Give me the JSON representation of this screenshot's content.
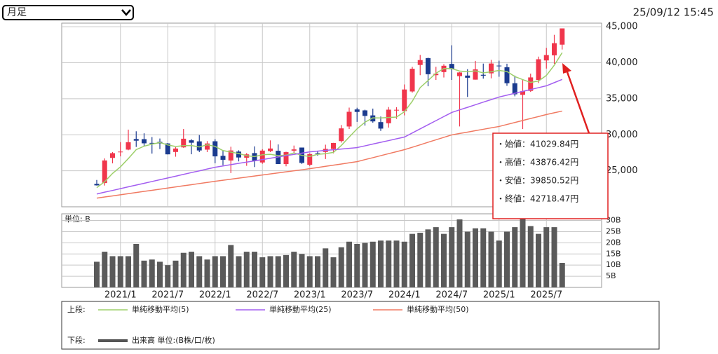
{
  "controls": {
    "period_select": "月足",
    "timestamp": "25/09/12 15:45"
  },
  "chart_data": [
    {
      "type": "candlestick",
      "categories": [
        null,
        null,
        null,
        "2021/1",
        null,
        null,
        null,
        null,
        null,
        "2021/7",
        null,
        null,
        null,
        null,
        null,
        "2022/1",
        null,
        null,
        null,
        null,
        null,
        "2022/7",
        null,
        null,
        null,
        null,
        null,
        "2023/1",
        null,
        null,
        null,
        null,
        null,
        "2023/7",
        null,
        null,
        null,
        null,
        null,
        "2024/1",
        null,
        null,
        null,
        null,
        null,
        "2024/7",
        null,
        null,
        null,
        null,
        null,
        "2025/1",
        null,
        null,
        null,
        null,
        null,
        "2025/7",
        null,
        null
      ],
      "open": [
        23185,
        23295,
        26787,
        27575,
        27940,
        29409,
        29394,
        28872,
        29019,
        28795,
        27611,
        28252,
        29235,
        29085,
        27935,
        29098,
        27078,
        26427,
        27665,
        26818,
        27457,
        26154,
        27743,
        27778,
        25938,
        27795,
        28226,
        25834,
        27451,
        27608,
        28033,
        29123,
        31148,
        33517,
        33386,
        32690,
        31759,
        31601,
        33444,
        33288,
        36011,
        39690,
        40646,
        38273,
        38702,
        39839,
        38140,
        38221,
        37652,
        38328,
        38531,
        39605,
        39369,
        37154,
        35548,
        36091,
        37616,
        40320,
        41029.84,
        42511
      ],
      "high": [
        23725,
        26716,
        27602,
        28979,
        30714,
        30485,
        30208,
        29685,
        29480,
        28852,
        28279,
        30795,
        29388,
        29960,
        29121,
        29388,
        27822,
        28338,
        27850,
        27458,
        28389,
        27993,
        29222,
        28659,
        27652,
        28502,
        28226,
        27433,
        27697,
        28623,
        28879,
        31352,
        33772,
        33753,
        33488,
        33634,
        32533,
        33853,
        33824,
        36984,
        39426,
        41087,
        40697,
        39437,
        39801,
        42426,
        38703,
        39100,
        40257,
        39884,
        40398,
        40288,
        39866,
        38220,
        37645,
        38494,
        40852,
        42065,
        43876.42,
        44768
      ],
      "low": [
        22948,
        22948,
        26030,
        27002,
        27850,
        28308,
        28419,
        27385,
        28009,
        27272,
        26954,
        28188,
        27293,
        27587,
        27594,
        26044,
        25775,
        24681,
        26304,
        25688,
        25520,
        25971,
        27595,
        25937,
        25621,
        27472,
        25953,
        25661,
        27106,
        26632,
        27427,
        28914,
        30796,
        31791,
        31275,
        31674,
        30538,
        30998,
        32205,
        32693,
        35854,
        38271,
        36733,
        37617,
        37950,
        37611,
        31156,
        35247,
        37652,
        37794,
        37835,
        38055,
        36793,
        35336,
        30792,
        35948,
        37184,
        39192,
        39850.52,
        41835
      ],
      "close": [
        22977,
        26434,
        27444,
        27663,
        28966,
        29179,
        28813,
        28860,
        28791,
        27283,
        28089,
        29452,
        28892,
        27821,
        28791,
        27001,
        26526,
        27821,
        26847,
        27279,
        26393,
        27801,
        28091,
        25937,
        27587,
        27968,
        26094,
        27327,
        27446,
        28041,
        28856,
        30887,
        33189,
        33172,
        32619,
        31857,
        30858,
        33486,
        33464,
        36286,
        39166,
        40369,
        38405,
        38487,
        39583,
        39101,
        38647,
        37919,
        39081,
        38208,
        39894,
        39572,
        37156,
        35617,
        36045,
        37965,
        40487,
        41069,
        42718.47,
        44768
      ],
      "up_color": "#f0364c",
      "down_color": "#1b3b8f",
      "series": [
        {
          "name": "単純移動平均(5)",
          "color": "#9dcf6a",
          "values": [
            22660,
            23489,
            24636,
            25541,
            26697,
            27937,
            28413,
            28696,
            28922,
            28585,
            28367,
            28495,
            28501,
            28307,
            28609,
            28391,
            27806,
            27592,
            27397,
            27095,
            26973,
            27228,
            27282,
            27100,
            27162,
            27477,
            27135,
            26983,
            27284,
            27375,
            27553,
            28511,
            29684,
            30829,
            31745,
            32345,
            32339,
            32398,
            32457,
            33190,
            34652,
            36554,
            37538,
            38543,
            39202,
            39189,
            38845,
            38747,
            38866,
            38591,
            38750,
            38935,
            38782,
            38089,
            37657,
            37271,
            37454,
            38237,
            39657,
            41401
          ]
        },
        {
          "name": "単純移動平均(25)",
          "color": "#a35ef0",
          "values": [
            21780,
            22030,
            22270,
            22520,
            22770,
            23020,
            23260,
            23510,
            23760,
            24000,
            24250,
            24500,
            24750,
            24990,
            25240,
            25490,
            25670,
            25850,
            26030,
            26200,
            26380,
            26560,
            26740,
            26920,
            27100,
            27270,
            27450,
            27630,
            27730,
            27830,
            27920,
            28020,
            28120,
            28220,
            28460,
            28710,
            28950,
            29190,
            29440,
            29680,
            30250,
            30820,
            31390,
            31960,
            32530,
            33100,
            33460,
            33810,
            34170,
            34530,
            34880,
            35240,
            35500,
            35760,
            36020,
            36280,
            36540,
            36800,
            37240,
            37680
          ]
        },
        {
          "name": "単純移動平均(50)",
          "color": "#f07a62",
          "values": [
            21200,
            21360,
            21510,
            21670,
            21820,
            21980,
            22140,
            22290,
            22450,
            22600,
            22760,
            22920,
            23070,
            23230,
            23380,
            23540,
            23690,
            23830,
            23980,
            24120,
            24270,
            24420,
            24560,
            24710,
            24850,
            25000,
            25140,
            25290,
            25450,
            25620,
            25780,
            25940,
            26110,
            26270,
            26550,
            26820,
            27100,
            27380,
            27650,
            27930,
            28270,
            28610,
            28960,
            29300,
            29640,
            29980,
            30180,
            30370,
            30570,
            30760,
            30960,
            31150,
            31430,
            31700,
            31980,
            32260,
            32530,
            32810,
            33050,
            33290
          ]
        }
      ],
      "ylim": [
        20000,
        45500
      ],
      "yticks": [
        {
          "value": 25000,
          "label": "25,000"
        },
        {
          "value": 30000,
          "label": "30,000"
        },
        {
          "value": 35000,
          "label": "35,000"
        },
        {
          "value": 40000,
          "label": "40,000"
        },
        {
          "value": 45000,
          "label": "45,000"
        }
      ],
      "grid": true,
      "tooltip": [
        "・始値：41029.84円",
        "・高値：43876.42円",
        "・安値：39850.52円",
        "・終値：42718.47円"
      ]
    },
    {
      "type": "bar",
      "unit_label": "単位: B",
      "color": "#5a5a5a",
      "values": [
        11.5,
        16,
        14,
        14,
        14,
        19.5,
        12,
        12.5,
        11.5,
        10,
        12,
        15.5,
        16,
        14,
        12.5,
        14,
        14,
        19,
        14,
        16,
        16,
        13.5,
        14,
        14,
        14.5,
        16,
        15,
        14,
        14,
        17.5,
        13.5,
        18,
        20.5,
        19.5,
        20,
        20.5,
        21,
        21,
        21,
        20.5,
        24,
        24.5,
        26,
        27,
        24,
        27,
        30.5,
        25,
        26.5,
        26.5,
        25,
        21,
        25,
        27,
        31.5,
        27.5,
        24,
        27,
        27,
        11
      ],
      "ylim": [
        0,
        33
      ],
      "yticks": [
        {
          "value": 5,
          "label": "5B"
        },
        {
          "value": 10,
          "label": "10B"
        },
        {
          "value": 15,
          "label": "15B"
        },
        {
          "value": 20,
          "label": "20B"
        },
        {
          "value": 25,
          "label": "25B"
        },
        {
          "value": 30,
          "label": "30B"
        }
      ],
      "grid": true
    }
  ],
  "legend": {
    "upper_label": "上段:",
    "lower_label": "下段:",
    "volume_label": "出来高 単位:(B株/口/枚)"
  }
}
